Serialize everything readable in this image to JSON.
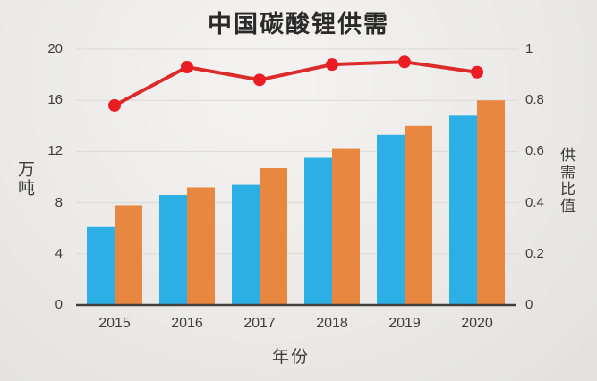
{
  "title": "中国碳酸锂供需",
  "left_axis": {
    "label": "万吨",
    "ticks": [
      "20",
      "16",
      "12",
      "8",
      "4",
      "0"
    ]
  },
  "right_axis": {
    "label": "供需比值",
    "ticks": [
      "1",
      "0.8",
      "0.6",
      "0.4",
      "0.2",
      "0"
    ]
  },
  "x_axis": {
    "label": "年份",
    "ticks": [
      "2015",
      "2016",
      "2017",
      "2018",
      "2019",
      "2020"
    ]
  },
  "colors": {
    "blue_bar": "#2bafe4",
    "orange_bar": "#e8873f",
    "ratio_line": "#dc2b2b",
    "marker_fill": "#ec1c24",
    "axis_line": "#3f3f3f",
    "gridline": "#dad9d7"
  },
  "chart_data": {
    "type": "bar",
    "subtype": "grouped-bar-with-line-combo",
    "title": "中国碳酸锂供需",
    "categories": [
      "2015",
      "2016",
      "2017",
      "2018",
      "2019",
      "2020"
    ],
    "series": [
      {
        "name": "blue-bars-left-axis",
        "type": "bar",
        "axis": "left",
        "values": [
          6.1,
          8.6,
          9.4,
          11.5,
          13.3,
          14.8
        ]
      },
      {
        "name": "orange-bars-left-axis",
        "type": "bar",
        "axis": "left",
        "values": [
          7.8,
          9.2,
          10.7,
          12.2,
          14.0,
          16.0
        ]
      },
      {
        "name": "red-ratio-line-right-axis",
        "type": "line",
        "axis": "right",
        "values": [
          0.78,
          0.93,
          0.88,
          0.94,
          0.95,
          0.91
        ]
      }
    ],
    "xlabel": "年份",
    "ylabel_left": "万吨",
    "ylabel_right": "供需比值",
    "ylim_left": [
      0,
      20
    ],
    "ylim_right": [
      0,
      1
    ],
    "left_tick_step": 4,
    "right_tick_step": 0.2,
    "grid": "horizontal-faint",
    "legend": "none"
  }
}
